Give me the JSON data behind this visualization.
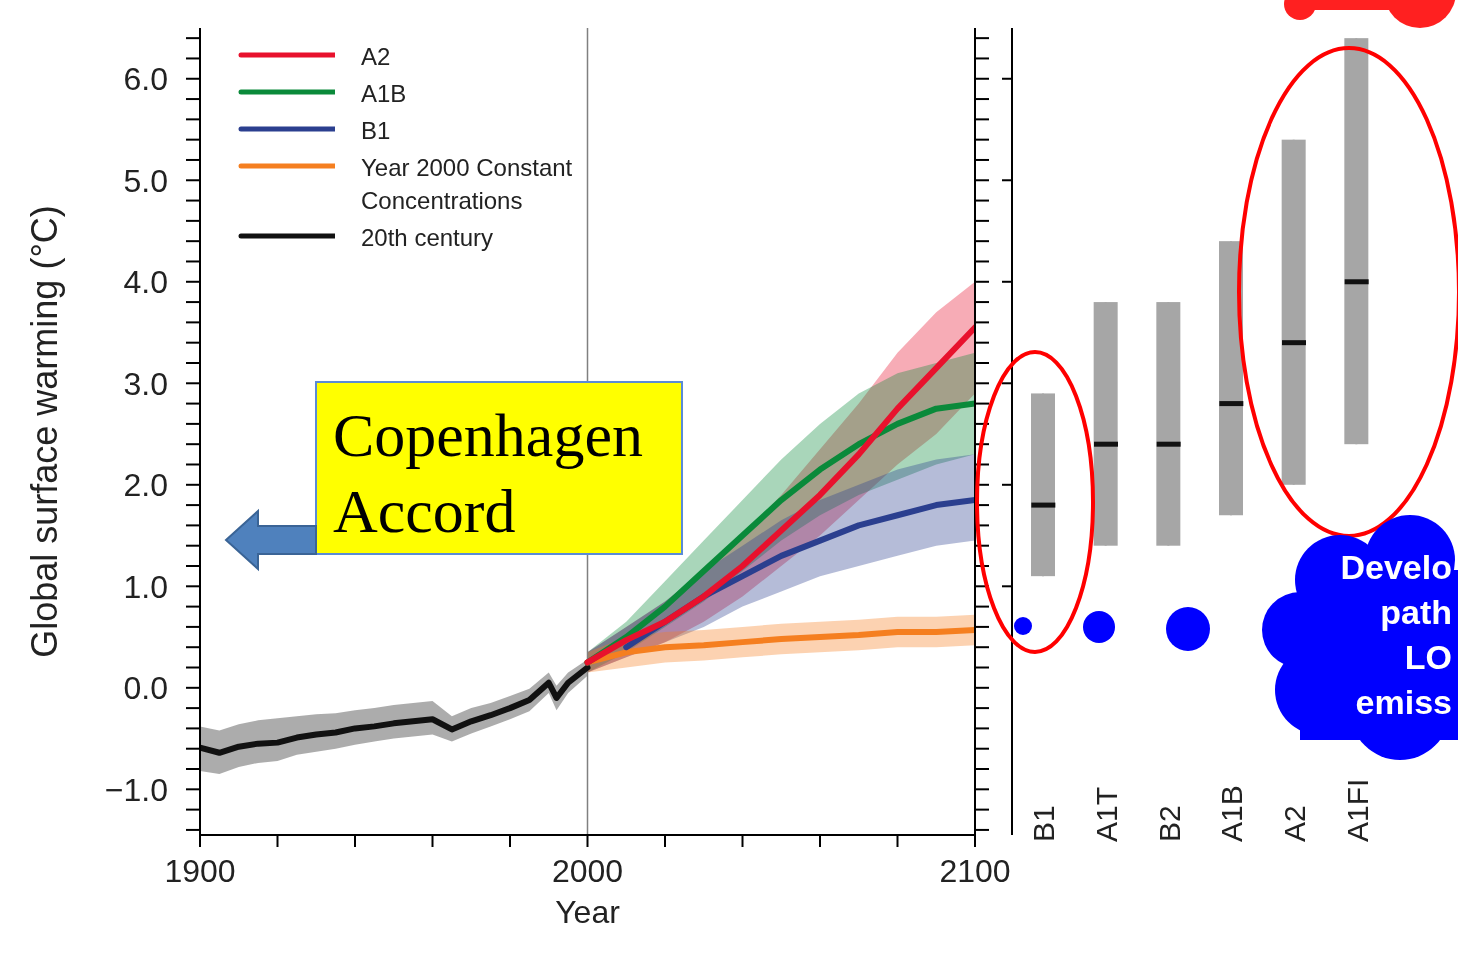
{
  "chart_data": [
    {
      "type": "line",
      "xlabel": "Year",
      "ylabel": "Global surface warming (°C)",
      "xlim": [
        1900,
        2100
      ],
      "xticks": [
        1900,
        {
          "value": 1920,
          "label": null
        },
        {
          "value": 1940,
          "label": null
        },
        {
          "value": 1960,
          "label": null
        },
        {
          "value": 1980,
          "label": null
        },
        2000,
        {
          "value": 2020,
          "label": null
        },
        {
          "value": 2040,
          "label": null
        },
        {
          "value": 2060,
          "label": null
        },
        {
          "value": 2080,
          "label": null
        },
        2100
      ],
      "ylim": [
        -1.45,
        6.5
      ],
      "yticks": [
        {
          "value": -1.4,
          "label": null
        },
        {
          "value": -1.2,
          "label": null
        },
        {
          "value": -1.0,
          "label": "−1.0"
        },
        {
          "value": -0.8,
          "label": null
        },
        {
          "value": -0.6,
          "label": null
        },
        {
          "value": -0.4,
          "label": null
        },
        {
          "value": -0.2,
          "label": null
        },
        {
          "value": 0,
          "label": "0.0"
        },
        {
          "value": 0.2,
          "label": null
        },
        {
          "value": 0.4,
          "label": null
        },
        {
          "value": 0.6,
          "label": null
        },
        {
          "value": 0.8,
          "label": null
        },
        {
          "value": 1,
          "label": "1.0"
        },
        {
          "value": 1.2,
          "label": null
        },
        {
          "value": 1.4,
          "label": null
        },
        {
          "value": 1.6,
          "label": null
        },
        {
          "value": 1.8,
          "label": null
        },
        {
          "value": 2,
          "label": "2.0"
        },
        {
          "value": 2.2,
          "label": null
        },
        {
          "value": 2.4,
          "label": null
        },
        {
          "value": 2.6,
          "label": null
        },
        {
          "value": 2.8,
          "label": null
        },
        {
          "value": 3,
          "label": "3.0"
        },
        {
          "value": 3.2,
          "label": null
        },
        {
          "value": 3.4,
          "label": null
        },
        {
          "value": 3.6,
          "label": null
        },
        {
          "value": 3.8,
          "label": null
        },
        {
          "value": 4,
          "label": "4.0"
        },
        {
          "value": 4.2,
          "label": null
        },
        {
          "value": 4.4,
          "label": null
        },
        {
          "value": 4.6,
          "label": null
        },
        {
          "value": 4.8,
          "label": null
        },
        {
          "value": 5,
          "label": "5.0"
        },
        {
          "value": 5.2,
          "label": null
        },
        {
          "value": 5.4,
          "label": null
        },
        {
          "value": 5.6,
          "label": null
        },
        {
          "value": 5.8,
          "label": null
        },
        {
          "value": 6,
          "label": "6.0"
        },
        {
          "value": 6.2,
          "label": null
        },
        {
          "value": 6.4,
          "label": null
        }
      ],
      "grid": false,
      "legend": "top left",
      "marker": "none",
      "line_style": "solid",
      "ref_lines": [
        {
          "axis": "x",
          "value": 2000,
          "color": "#808080"
        }
      ],
      "annotations": [
        "Copenhagen Accord",
        "Develo\npath\nLO\nemiss"
      ],
      "series": [
        {
          "name": "A2",
          "color": "#e8112d",
          "x": [
            2000,
            2010,
            2020,
            2030,
            2040,
            2050,
            2060,
            2070,
            2080,
            2090,
            2100
          ],
          "values": [
            0.25,
            0.47,
            0.65,
            0.9,
            1.2,
            1.55,
            1.9,
            2.3,
            2.75,
            3.15,
            3.55
          ],
          "lower": [
            0.15,
            0.3,
            0.45,
            0.65,
            0.9,
            1.2,
            1.5,
            1.85,
            2.2,
            2.5,
            2.9
          ],
          "upper": [
            0.35,
            0.6,
            0.85,
            1.15,
            1.5,
            1.9,
            2.35,
            2.8,
            3.3,
            3.7,
            4.0
          ]
        },
        {
          "name": "A1B",
          "color": "#0a8a3a",
          "x": [
            2000,
            2010,
            2020,
            2030,
            2040,
            2050,
            2060,
            2070,
            2080,
            2090,
            2100
          ],
          "values": [
            0.25,
            0.5,
            0.8,
            1.15,
            1.5,
            1.85,
            2.15,
            2.4,
            2.6,
            2.75,
            2.8
          ],
          "lower": [
            0.15,
            0.35,
            0.6,
            0.85,
            1.15,
            1.45,
            1.7,
            1.9,
            2.05,
            2.2,
            2.3
          ],
          "upper": [
            0.35,
            0.65,
            1.05,
            1.45,
            1.85,
            2.25,
            2.6,
            2.9,
            3.1,
            3.2,
            3.3
          ]
        },
        {
          "name": "B1",
          "color": "#2b3f8f",
          "x": [
            2000,
            2010,
            2020,
            2030,
            2040,
            2050,
            2060,
            2070,
            2080,
            2090,
            2100
          ],
          "values": [
            null,
            0.4,
            0.65,
            0.9,
            1.1,
            1.3,
            1.45,
            1.6,
            1.7,
            1.8,
            1.85
          ],
          "lower": [
            0.15,
            0.3,
            0.45,
            0.6,
            0.8,
            0.95,
            1.1,
            1.2,
            1.3,
            1.4,
            1.45
          ],
          "upper": [
            0.35,
            0.6,
            0.85,
            1.15,
            1.4,
            1.65,
            1.85,
            2.0,
            2.15,
            2.25,
            2.3
          ]
        },
        {
          "name": "Year 2000 Constant Concentrations",
          "color": "#f57f20",
          "x": [
            2000,
            2010,
            2020,
            2030,
            2040,
            2050,
            2060,
            2070,
            2080,
            2090,
            2100
          ],
          "values": [
            0.25,
            0.35,
            0.4,
            0.42,
            0.45,
            0.48,
            0.5,
            0.52,
            0.55,
            0.55,
            0.57
          ],
          "lower": [
            0.15,
            0.2,
            0.25,
            0.27,
            0.3,
            0.33,
            0.35,
            0.37,
            0.4,
            0.4,
            0.42
          ],
          "upper": [
            0.35,
            0.5,
            0.55,
            0.57,
            0.6,
            0.63,
            0.65,
            0.67,
            0.7,
            0.7,
            0.72
          ]
        },
        {
          "name": "20th century",
          "color": "#111111",
          "x": [
            1900,
            1905,
            1910,
            1915,
            1920,
            1925,
            1930,
            1935,
            1940,
            1945,
            1950,
            1955,
            1960,
            1965,
            1970,
            1975,
            1980,
            1985,
            1990,
            1992,
            1995,
            2000
          ],
          "values": [
            -0.59,
            -0.64,
            -0.58,
            -0.55,
            -0.54,
            -0.49,
            -0.46,
            -0.44,
            -0.4,
            -0.38,
            -0.35,
            -0.33,
            -0.31,
            -0.41,
            -0.33,
            -0.27,
            -0.2,
            -0.12,
            0.05,
            -0.1,
            0.05,
            0.2
          ],
          "lower": [
            -0.82,
            -0.85,
            -0.78,
            -0.74,
            -0.72,
            -0.66,
            -0.63,
            -0.6,
            -0.56,
            -0.53,
            -0.5,
            -0.48,
            -0.46,
            -0.53,
            -0.45,
            -0.38,
            -0.31,
            -0.23,
            -0.05,
            -0.22,
            -0.05,
            0.12
          ],
          "upper": [
            -0.38,
            -0.42,
            -0.36,
            -0.32,
            -0.3,
            -0.28,
            -0.26,
            -0.25,
            -0.22,
            -0.2,
            -0.17,
            -0.15,
            -0.13,
            -0.28,
            -0.2,
            -0.15,
            -0.08,
            -0.01,
            0.15,
            0.02,
            0.15,
            0.28
          ]
        }
      ]
    },
    {
      "type": "box",
      "categories": [
        "B1",
        "A1T",
        "B2",
        "A1B",
        "A2",
        "A1FI"
      ],
      "color": "#a6a6a6",
      "ylim": [
        -1.45,
        6.5
      ],
      "tick_labels": "x",
      "yticks": [
        {
          "value": 1,
          "label": null
        },
        {
          "value": 2,
          "label": null
        },
        {
          "value": 3,
          "label": null
        },
        {
          "value": 4,
          "label": null
        },
        {
          "value": 5,
          "label": null
        },
        {
          "value": 6,
          "label": null
        }
      ],
      "boxes": [
        {
          "low": 1.1,
          "q1": 1.1,
          "median": 1.8,
          "q3": 2.9,
          "high": 2.9
        },
        {
          "low": 1.4,
          "q1": 1.4,
          "median": 2.4,
          "q3": 3.8,
          "high": 3.8
        },
        {
          "low": 1.4,
          "q1": 1.4,
          "median": 2.4,
          "q3": 3.8,
          "high": 3.8
        },
        {
          "low": 1.7,
          "q1": 1.7,
          "median": 2.8,
          "q3": 4.4,
          "high": 4.4
        },
        {
          "low": 2.0,
          "q1": 2.0,
          "median": 3.4,
          "q3": 5.4,
          "high": 5.4
        },
        {
          "low": 2.4,
          "q1": 2.4,
          "median": 4.0,
          "q3": 6.4,
          "high": 6.4
        }
      ]
    }
  ]
}
